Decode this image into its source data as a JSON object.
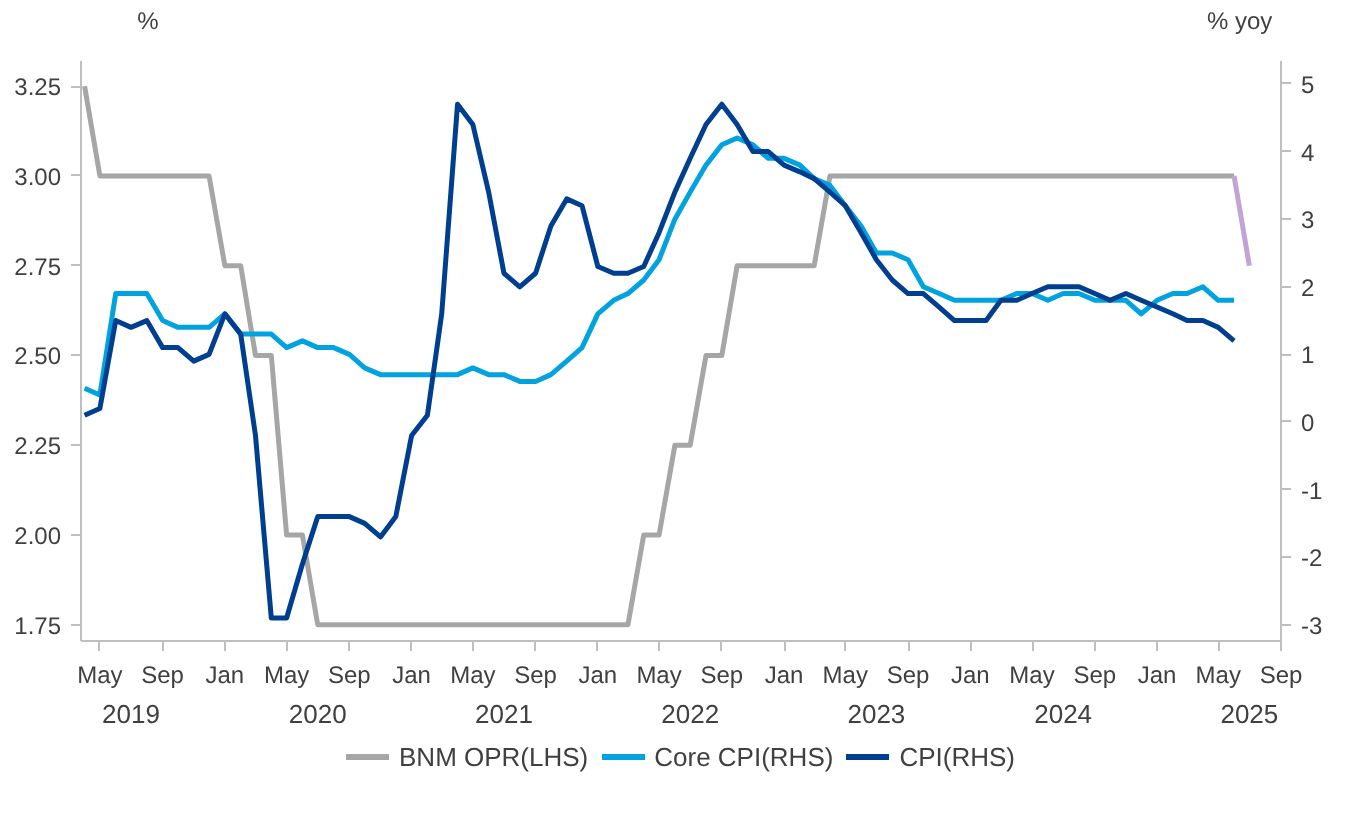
{
  "chart_data": {
    "type": "line",
    "ylabel": "%",
    "y2label": "% yoy",
    "x": [
      "2019-04",
      "2019-05",
      "2019-06",
      "2019-07",
      "2019-08",
      "2019-09",
      "2019-10",
      "2019-11",
      "2019-12",
      "2020-01",
      "2020-02",
      "2020-03",
      "2020-04",
      "2020-05",
      "2020-06",
      "2020-07",
      "2020-08",
      "2020-09",
      "2020-10",
      "2020-11",
      "2020-12",
      "2021-01",
      "2021-02",
      "2021-03",
      "2021-04",
      "2021-05",
      "2021-06",
      "2021-07",
      "2021-08",
      "2021-09",
      "2021-10",
      "2021-11",
      "2021-12",
      "2022-01",
      "2022-02",
      "2022-03",
      "2022-04",
      "2022-05",
      "2022-06",
      "2022-07",
      "2022-08",
      "2022-09",
      "2022-10",
      "2022-11",
      "2022-12",
      "2023-01",
      "2023-02",
      "2023-03",
      "2023-04",
      "2023-05",
      "2023-06",
      "2023-07",
      "2023-08",
      "2023-09",
      "2023-10",
      "2023-11",
      "2023-12",
      "2024-01",
      "2024-02",
      "2024-03",
      "2024-04",
      "2024-05",
      "2024-06",
      "2024-07",
      "2024-08",
      "2024-09",
      "2024-10",
      "2024-11",
      "2024-12",
      "2025-01",
      "2025-02",
      "2025-03",
      "2025-04",
      "2025-05",
      "2025-06"
    ],
    "series": [
      {
        "name": "BNM OPR(LHS)",
        "color": "#a6a6a6",
        "x": [
          "2019-04",
          "2019-05",
          "2019-12",
          "2020-01",
          "2020-02",
          "2020-03",
          "2020-04",
          "2020-05",
          "2020-06",
          "2020-07",
          "2022-03",
          "2022-04",
          "2022-05",
          "2022-06",
          "2022-07",
          "2022-08",
          "2022-09",
          "2022-10",
          "2023-03",
          "2023-04",
          "2025-06"
        ],
        "values": [
          3.25,
          3.0,
          3.0,
          2.75,
          2.75,
          2.5,
          2.5,
          2.0,
          2.0,
          1.75,
          1.75,
          2.0,
          2.0,
          2.25,
          2.25,
          2.5,
          2.5,
          2.75,
          2.75,
          3.0,
          3.0
        ]
      },
      {
        "color": "#c3a3d6",
        "x": [
          "2025-06",
          "2025-07"
        ],
        "values": [
          3.0,
          2.75
        ]
      },
      {
        "name": "Core CPI(RHS)",
        "color": "#00a3e0",
        "axis": "y2",
        "values": [
          0.5,
          0.4,
          1.9,
          1.9,
          1.9,
          1.5,
          1.4,
          1.4,
          1.4,
          1.6,
          1.3,
          1.3,
          1.3,
          1.1,
          1.2,
          1.1,
          1.1,
          1.0,
          0.8,
          0.7,
          0.7,
          0.7,
          0.7,
          0.7,
          0.7,
          0.8,
          0.7,
          0.7,
          0.6,
          0.6,
          0.7,
          0.9,
          1.1,
          1.6,
          1.8,
          1.9,
          2.1,
          2.4,
          3.0,
          3.4,
          3.8,
          4.1,
          4.2,
          4.1,
          3.9,
          3.9,
          3.8,
          3.6,
          3.5,
          3.2,
          2.9,
          2.5,
          2.5,
          2.4,
          2.0,
          1.9,
          1.8,
          1.8,
          1.8,
          1.8,
          1.9,
          1.9,
          1.8,
          1.9,
          1.9,
          1.8,
          1.8,
          1.8,
          1.6,
          1.8,
          1.9,
          1.9,
          2.0,
          1.8,
          1.8
        ]
      },
      {
        "name": "CPI(RHS)",
        "color": "#003f8f",
        "axis": "y2",
        "values": [
          0.1,
          0.2,
          1.5,
          1.4,
          1.5,
          1.1,
          1.1,
          0.9,
          1.0,
          1.6,
          1.3,
          -0.2,
          -2.9,
          -2.9,
          -2.1,
          -1.4,
          -1.4,
          -1.4,
          -1.5,
          -1.7,
          -1.4,
          -0.2,
          0.1,
          1.6,
          4.7,
          4.4,
          3.4,
          2.2,
          2.0,
          2.2,
          2.9,
          3.3,
          3.2,
          2.3,
          2.2,
          2.2,
          2.3,
          2.8,
          3.4,
          3.9,
          4.4,
          4.7,
          4.4,
          4.0,
          4.0,
          3.8,
          3.7,
          3.6,
          3.4,
          3.2,
          2.8,
          2.4,
          2.1,
          1.9,
          1.9,
          1.7,
          1.5,
          1.5,
          1.5,
          1.8,
          1.8,
          1.9,
          2.0,
          2.0,
          2.0,
          1.9,
          1.8,
          1.9,
          1.8,
          1.7,
          1.6,
          1.5,
          1.5,
          1.4,
          1.2
        ]
      }
    ],
    "xlim": [
      "2019-03-25",
      "2025-09-01"
    ],
    "xticks": [
      {
        "value": "2019-05",
        "label": "May"
      },
      {
        "value": "2019-09",
        "label": "Sep"
      },
      {
        "value": "2020-01",
        "label": "Jan"
      },
      {
        "value": "2020-05",
        "label": "May"
      },
      {
        "value": "2020-09",
        "label": "Sep"
      },
      {
        "value": "2021-01",
        "label": "Jan"
      },
      {
        "value": "2021-05",
        "label": "May"
      },
      {
        "value": "2021-09",
        "label": "Sep"
      },
      {
        "value": "2022-01",
        "label": "Jan"
      },
      {
        "value": "2022-05",
        "label": "May"
      },
      {
        "value": "2022-09",
        "label": "Sep"
      },
      {
        "value": "2023-01",
        "label": "Jan"
      },
      {
        "value": "2023-05",
        "label": "May"
      },
      {
        "value": "2023-09",
        "label": "Sep"
      },
      {
        "value": "2024-01",
        "label": "Jan"
      },
      {
        "value": "2024-05",
        "label": "May"
      },
      {
        "value": "2024-09",
        "label": "Sep"
      },
      {
        "value": "2025-01",
        "label": "Jan"
      },
      {
        "value": "2025-05",
        "label": "May"
      },
      {
        "value": "2025-09",
        "label": "Sep"
      }
    ],
    "x2lim": [
      "2019-03-25",
      "2025-09-01"
    ],
    "x2ticks": [
      {
        "value": "2019-07",
        "label": "2019"
      },
      {
        "value": "2020-07",
        "label": "2020"
      },
      {
        "value": "2021-07",
        "label": "2021"
      },
      {
        "value": "2022-07",
        "label": "2022"
      },
      {
        "value": "2023-07",
        "label": "2023"
      },
      {
        "value": "2024-07",
        "label": "2024"
      },
      {
        "value": "2025-07",
        "label": "2025"
      }
    ],
    "ylim": [
      1.705,
      3.32
    ],
    "yticks": [
      {
        "value": 1.75,
        "label": "1.75"
      },
      {
        "value": 2.0,
        "label": "2.00"
      },
      {
        "value": 2.25,
        "label": "2.25"
      },
      {
        "value": 2.5,
        "label": "2.50"
      },
      {
        "value": 2.75,
        "label": "2.75"
      },
      {
        "value": 3.0,
        "label": "3.00"
      },
      {
        "value": 3.25,
        "label": "3.25"
      }
    ],
    "y2lim": [
      -3.24,
      5.34
    ],
    "y2ticks": [
      -3,
      -2,
      -1,
      0,
      1,
      2,
      3,
      4,
      5
    ],
    "grid": false,
    "legend": "bottom",
    "line_style": "solid",
    "marker": "none"
  }
}
